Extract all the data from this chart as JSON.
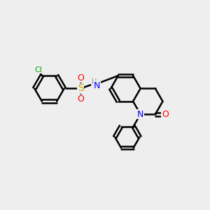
{
  "bg_color": "#eeeeee",
  "bond_color": "#000000",
  "bond_width": 1.8,
  "atom_colors": {
    "Cl": "#00aa00",
    "S": "#ccaa00",
    "O": "#ff0000",
    "N": "#0000ff",
    "H": "#888888",
    "C": "#000000"
  },
  "font_size": 8,
  "figsize": [
    3.0,
    3.0
  ],
  "dpi": 100
}
